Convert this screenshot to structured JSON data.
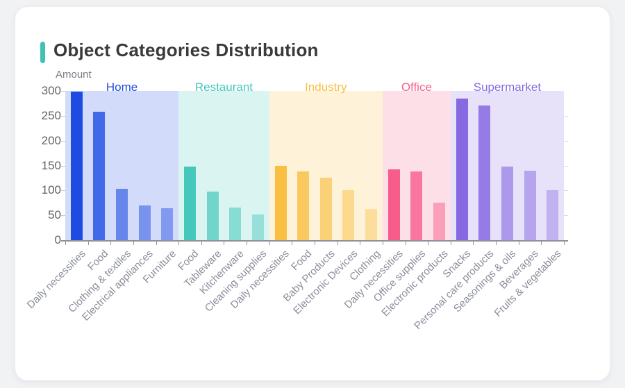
{
  "card": {
    "accent_color": "#3fc1b3"
  },
  "chart_data": {
    "type": "bar",
    "title": "Object Categories Distribution",
    "xlabel": "",
    "ylabel": "Amount",
    "ylim": [
      0,
      300
    ],
    "y_ticks": [
      0,
      50,
      100,
      150,
      200,
      250,
      300
    ],
    "grid": false,
    "legend_position": "none",
    "axis_note": "single category axis of 22 bars, shaded background band per group",
    "groups": [
      {
        "name": "Home",
        "color": "#1e4ce3",
        "categories": [
          "Daily necessities",
          "Food",
          "Clothing & textiles",
          "Electrical appliances",
          "Furniture"
        ],
        "values": [
          298,
          258,
          103,
          70,
          64
        ],
        "bar_opacities": [
          1,
          0.8,
          0.6,
          0.5,
          0.45
        ]
      },
      {
        "name": "Restaurant",
        "color": "#44c8bc",
        "categories": [
          "Food",
          "Tableware",
          "Kitchenware",
          "Cleaning supplies"
        ],
        "values": [
          148,
          98,
          66,
          52
        ],
        "bar_opacities": [
          1,
          0.7,
          0.55,
          0.45
        ]
      },
      {
        "name": "Industry",
        "color": "#f9bf42",
        "categories": [
          "Daily necessities",
          "Food",
          "Baby Products",
          "Electronic Devices",
          "Clothing"
        ],
        "values": [
          150,
          138,
          126,
          100,
          63
        ],
        "bar_opacities": [
          1,
          0.82,
          0.65,
          0.5,
          0.4
        ]
      },
      {
        "name": "Office",
        "color": "#f75d8b",
        "categories": [
          "Daily necessities",
          "Office supplies",
          "Electronic products"
        ],
        "values": [
          142,
          138,
          75
        ],
        "bar_opacities": [
          1,
          0.8,
          0.5
        ]
      },
      {
        "name": "Supermarket",
        "color": "#8669e1",
        "categories": [
          "Snacks",
          "Personal care products",
          "Seasonings & oils",
          "Beverages",
          "Fruits & vegetables"
        ],
        "values": [
          284,
          271,
          148,
          140,
          101
        ],
        "bar_opacities": [
          1,
          0.85,
          0.6,
          0.5,
          0.4
        ]
      }
    ]
  }
}
